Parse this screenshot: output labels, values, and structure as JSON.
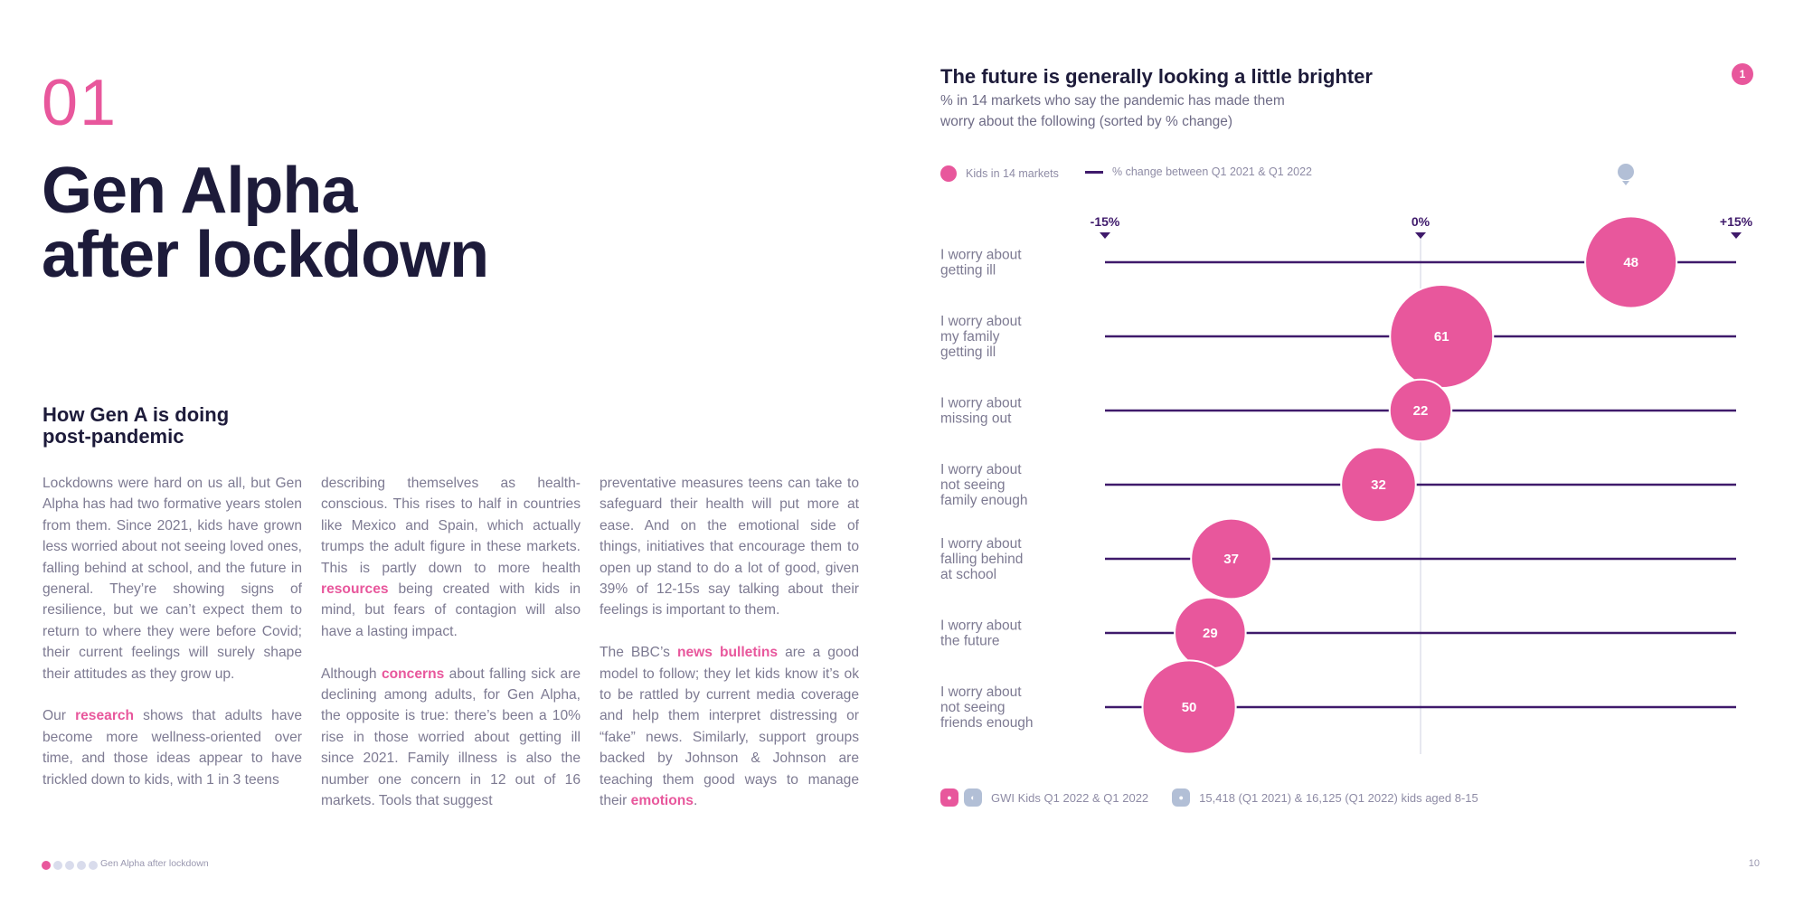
{
  "page": {
    "section_number": "01",
    "title_lines": [
      "Gen Alpha",
      "after lockdown"
    ],
    "subtitle_lines": [
      "How Gen A is doing",
      "post-pandemic"
    ],
    "footer_label": "Gen Alpha after lockdown",
    "page_number": "10",
    "colors": {
      "accent": "#e8579c",
      "dark": "#1d1b3a",
      "line": "#3f1a6b",
      "muted": "#7d7a92"
    }
  },
  "body": {
    "col1": {
      "p1": "Lockdowns were hard on us all, but Gen Alpha has had two formative years stolen from them. Since 2021, kids have grown less worried about not seeing loved ones, falling behind at school, and the future in general. They’re showing signs of resilience, but we can’t expect them to return to where they were before Covid; their current feelings will surely shape their attitudes as they grow up.",
      "p2_a": "Our ",
      "p2_link": "research",
      "p2_b": " shows that adults have become more wellness-oriented over time, and those ideas appear to have trickled down to kids, with 1 in 3 teens"
    },
    "col2": {
      "p1_a": "describing themselves as health-conscious. This rises to half in countries like Mexico and Spain, which actually trumps the adult figure in these markets. This is partly down to more health ",
      "p1_link": "resources",
      "p1_b": " being created with kids in mind, but fears of contagion will also have a lasting impact.",
      "p2_a": "Although ",
      "p2_link": "concerns",
      "p2_b": " about falling sick are declining among adults, for Gen Alpha, the opposite is true: there’s been a 10% rise in those worried about getting ill since 2021. Family illness is also the number one concern in 12 out of 16 markets. Tools that suggest"
    },
    "col3": {
      "p1": "preventative measures teens can take to safeguard their health will put more at ease. And on the emotional side of things, initiatives that encourage them to open up stand to do a lot of good, given 39% of 12-15s say talking about their feelings is important to them.",
      "p2_a": "The BBC’s ",
      "p2_link": "news bulletins",
      "p2_b": " are a good model to follow; they let kids know it’s ok to be rattled by current media coverage and help them interpret distressing or “fake” news. Similarly, support groups backed by Johnson & Johnson are teaching them good ways to manage their ",
      "p2_link2": "emotions",
      "p2_c": "."
    }
  },
  "chart_header": {
    "title": "The future is generally looking a little brighter",
    "subtitle_lines": [
      "% in 14 markets who say the pandemic has made them",
      "worry about the following (sorted by % change)"
    ],
    "badge": "1",
    "legend_kids": "Kids in 14 markets",
    "legend_change": "% change between Q1 2021 & Q1 2022",
    "source": "GWI Kids Q1 2022 & Q1 2022",
    "base": "15,418 (Q1 2021) & 16,125 (Q1 2022) kids aged 8-15"
  },
  "chart_data": {
    "type": "scatter",
    "title": "The future is generally looking a little brighter",
    "x_axis": {
      "min": -15,
      "max": 15,
      "ticks": [
        -15,
        0,
        15
      ],
      "tick_labels": [
        "-15%",
        "0%",
        "+15%"
      ],
      "label": "% change between Q1 2021 & Q1 2022"
    },
    "series_name": "Kids in 14 markets",
    "bubble_value_unit": "%",
    "items": [
      {
        "label_lines": [
          "I worry about",
          "getting ill"
        ],
        "change": 10,
        "value": 48
      },
      {
        "label_lines": [
          "I worry about",
          "my family",
          "getting ill"
        ],
        "change": 1,
        "value": 61
      },
      {
        "label_lines": [
          "I worry about",
          "missing out"
        ],
        "change": 0,
        "value": 22
      },
      {
        "label_lines": [
          "I worry about",
          "not seeing",
          "family enough"
        ],
        "change": -2,
        "value": 32
      },
      {
        "label_lines": [
          "I worry about",
          "falling behind",
          "at school"
        ],
        "change": -9,
        "value": 37
      },
      {
        "label_lines": [
          "I worry about",
          "the future"
        ],
        "change": -10,
        "value": 29
      },
      {
        "label_lines": [
          "I worry about",
          "not seeing",
          "friends enough"
        ],
        "change": -11,
        "value": 50
      }
    ]
  }
}
